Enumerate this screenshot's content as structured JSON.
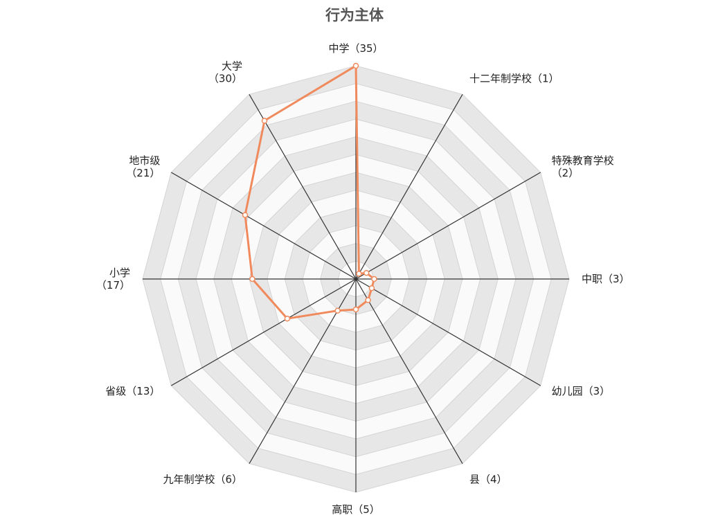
{
  "title": "行为主体",
  "chart_data": {
    "type": "radar",
    "title": "行为主体",
    "axes": [
      {
        "name": "中学",
        "value": 35,
        "label_lines": [
          "中学（35）"
        ]
      },
      {
        "name": "十二年制学校",
        "value": 1,
        "label_lines": [
          "十二年制学校（1）"
        ]
      },
      {
        "name": "特殊教育学校",
        "value": 2,
        "label_lines": [
          "特殊教育学校",
          "（2）"
        ]
      },
      {
        "name": "中职",
        "value": 3,
        "label_lines": [
          "中职（3）"
        ]
      },
      {
        "name": "幼儿园",
        "value": 3,
        "label_lines": [
          "幼儿园（3）"
        ]
      },
      {
        "name": "县",
        "value": 4,
        "label_lines": [
          "县（4）"
        ]
      },
      {
        "name": "高职",
        "value": 5,
        "label_lines": [
          "高职（5）"
        ]
      },
      {
        "name": "九年制学校",
        "value": 6,
        "label_lines": [
          "九年制学校（6）"
        ]
      },
      {
        "name": "省级",
        "value": 13,
        "label_lines": [
          "省级（13）"
        ]
      },
      {
        "name": "小学",
        "value": 17,
        "label_lines": [
          "小学",
          "（17）"
        ]
      },
      {
        "name": "地市级",
        "value": 21,
        "label_lines": [
          "地市级",
          "（21）"
        ]
      },
      {
        "name": "大学",
        "value": 30,
        "label_lines": [
          "大学",
          "（30）"
        ]
      }
    ],
    "range": [
      0,
      35
    ],
    "rings": 12,
    "grid": true,
    "legend": "none",
    "colors": {
      "series": "#f08a5d",
      "marker_fill": "#ffffff",
      "spoke": "#333333",
      "band_dark": "#e7e7e7",
      "band_light": "#fafafa",
      "ring_stroke": "#d4d4d4"
    }
  }
}
